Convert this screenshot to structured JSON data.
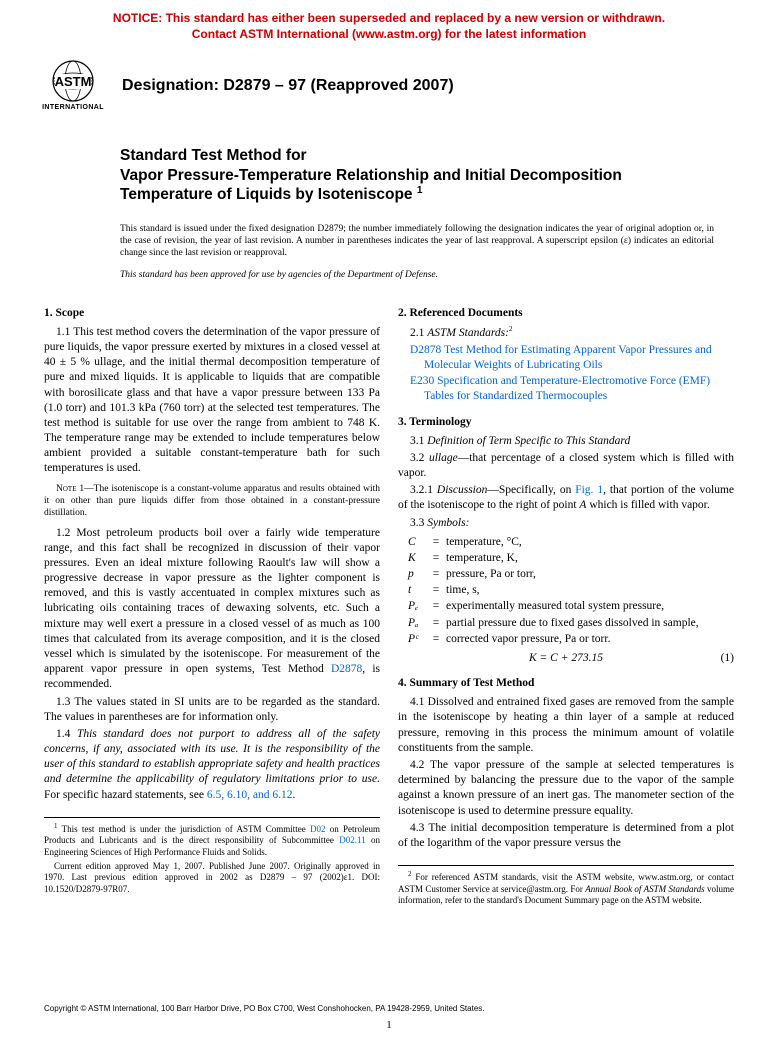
{
  "notice": {
    "line1": "NOTICE: This standard has either been superseded and replaced by a new version or withdrawn.",
    "line2": "Contact ASTM International (www.astm.org) for the latest information",
    "color": "#cc0000"
  },
  "logo": {
    "org": "INTERNATIONAL"
  },
  "designation": "Designation: D2879 – 97 (Reapproved 2007)",
  "title": {
    "pre": "Standard Test Method for",
    "main": "Vapor Pressure-Temperature Relationship and Initial Decomposition Temperature of Liquids by Isoteniscope",
    "sup": "1"
  },
  "issuance": "This standard is issued under the fixed designation D2879; the number immediately following the designation indicates the year of original adoption or, in the case of revision, the year of last revision. A number in parentheses indicates the year of last reapproval. A superscript epsilon (ε) indicates an editorial change since the last revision or reapproval.",
  "approval": "This standard has been approved for use by agencies of the Department of Defense.",
  "left": {
    "s1_head": "1. Scope",
    "p1_1": "1.1 This test method covers the determination of the vapor pressure of pure liquids, the vapor pressure exerted by mixtures in a closed vessel at 40 ± 5 % ullage, and the initial thermal decomposition temperature of pure and mixed liquids. It is applicable to liquids that are compatible with borosilicate glass and that have a vapor pressure between 133 Pa (1.0 torr) and 101.3 kPa (760 torr) at the selected test temperatures. The test method is suitable for use over the range from ambient to 748 K. The temperature range may be extended to include temperatures below ambient provided a suitable constant-temperature bath for such temperatures is used.",
    "note1_label": "Note 1—",
    "note1": "The isoteniscope is a constant-volume apparatus and results obtained with it on other than pure liquids differ from those obtained in a constant-pressure distillation.",
    "p1_2a": "1.2 Most petroleum products boil over a fairly wide temperature range, and this fact shall be recognized in discussion of their vapor pressures. Even an ideal mixture following Raoult's law will show a progressive decrease in vapor pressure as the lighter component is removed, and this is vastly accentuated in complex mixtures such as lubricating oils containing traces of dewaxing solvents, etc. Such a mixture may well exert a pressure in a closed vessel of as much as 100 times that calculated from its average composition, and it is the closed vessel which is simulated by the isoteniscope. For measurement of the apparent vapor pressure in open systems, Test Method ",
    "p1_2_link": "D2878",
    "p1_2b": ", is recommended.",
    "p1_3": "1.3 The values stated in SI units are to be regarded as the standard. The values in parentheses are for information only.",
    "p1_4a": "1.4 ",
    "p1_4_italic": "This standard does not purport to address all of the safety concerns, if any, associated with its use. It is the responsibility of the user of this standard to establish appropriate safety and health practices and determine the applicability of regulatory limitations prior to use.",
    "p1_4b": " For specific hazard statements, see ",
    "p1_4_links": "6.5, 6.10, and 6.12",
    "p1_4c": ".",
    "fn1_a": " This test method is under the jurisdiction of ASTM Committee ",
    "fn1_link1": "D02",
    "fn1_b": " on Petroleum Products and Lubricants and is the direct responsibility of Subcommittee ",
    "fn1_link2": "D02.11",
    "fn1_c": " on Engineering Sciences of High Performance Fluids and Solids.",
    "fn1_d": "Current edition approved May 1, 2007. Published June 2007. Originally approved in 1970. Last previous edition approved in 2002 as D2879 – 97 (2002)ε1. DOI: 10.1520/D2879-97R07."
  },
  "right": {
    "s2_head": "2. Referenced Documents",
    "p2_1a": "2.1 ",
    "p2_1_italic": "ASTM Standards:",
    "p2_1_sup": "2",
    "ref1_code": "D2878",
    "ref1_text": " Test Method for Estimating Apparent Vapor Pressures and Molecular Weights of Lubricating Oils",
    "ref2_code": "E230",
    "ref2_text": " Specification and Temperature-Electromotive Force (EMF) Tables for Standardized Thermocouples",
    "s3_head": "3. Terminology",
    "p3_1a": "3.1 ",
    "p3_1_italic": "Definition of Term Specific to This Standard",
    "p3_2a": "3.2 ",
    "p3_2_term": "ullage",
    "p3_2b": "—that percentage of a closed system which is filled with vapor.",
    "p3_2_1a": "3.2.1 ",
    "p3_2_1_italic": "Discussion",
    "p3_2_1b": "—Specifically, on ",
    "p3_2_1_link": "Fig. 1",
    "p3_2_1c": ", that portion of the volume of the isoteniscope to the right of point ",
    "p3_2_1_A": "A",
    "p3_2_1d": " which is filled with vapor.",
    "p3_3a": "3.3 ",
    "p3_3_italic": "Symbols:",
    "symbols": [
      {
        "l": "C",
        "r": "temperature, °C,"
      },
      {
        "l": "K",
        "r": "temperature, K,"
      },
      {
        "l": "p",
        "r": "pressure, Pa or torr,"
      },
      {
        "l": "t",
        "r": "time, s,"
      },
      {
        "l": "Pₑ",
        "r": "experimentally measured total system pressure,"
      },
      {
        "l": "Pₐ",
        "r": "partial pressure due to fixed gases dissolved in sample,"
      },
      {
        "l": "Pᶜ",
        "r": "corrected vapor pressure, Pa or torr."
      }
    ],
    "eq": "K = C + 273.15",
    "eq_num": "(1)",
    "s4_head": "4. Summary of Test Method",
    "p4_1": "4.1 Dissolved and entrained fixed gases are removed from the sample in the isoteniscope by heating a thin layer of a sample at reduced pressure, removing in this process the minimum amount of volatile constituents from the sample.",
    "p4_2": "4.2 The vapor pressure of the sample at selected temperatures is determined by balancing the pressure due to the vapor of the sample against a known pressure of an inert gas. The manometer section of the isoteniscope is used to determine pressure equality.",
    "p4_3": "4.3 The initial decomposition temperature is determined from a plot of the logarithm of the vapor pressure versus the",
    "fn2_a": " For referenced ASTM standards, visit the ASTM website, www.astm.org, or contact ASTM Customer Service at service@astm.org. For ",
    "fn2_italic": "Annual Book of ASTM Standards",
    "fn2_b": " volume information, refer to the standard's Document Summary page on the ASTM website."
  },
  "copyright": "Copyright © ASTM International, 100 Barr Harbor Drive, PO Box C700, West Conshohocken, PA 19428-2959, United States.",
  "page_num": "1",
  "colors": {
    "notice": "#cc0000",
    "link": "#0066cc",
    "text": "#000000",
    "bg": "#ffffff"
  }
}
